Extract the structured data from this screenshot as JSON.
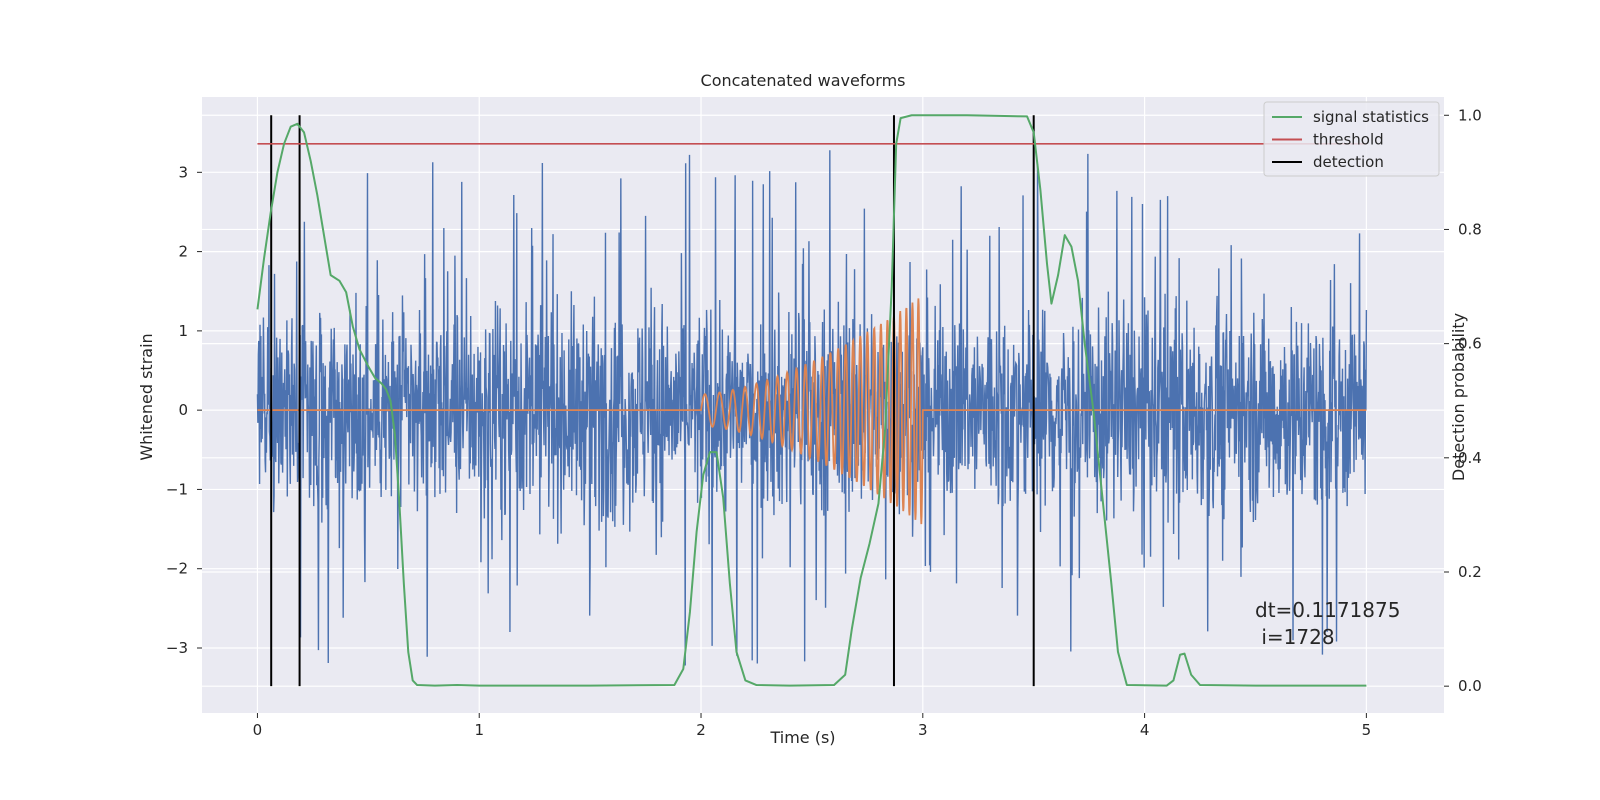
{
  "chart_data": {
    "type": "line",
    "title": "Concatenated waveforms",
    "xlabel": "Time (s)",
    "ylabel_left": "Whitened strain",
    "ylabel_right": "Detection probability",
    "xlim": [
      -0.25,
      5.35
    ],
    "ylim_left": [
      -3.82,
      3.95
    ],
    "ylim_right": [
      -0.047,
      1.032
    ],
    "x_ticks": [
      0,
      1,
      2,
      3,
      4,
      5
    ],
    "y_ticks_left": [
      -3,
      -2,
      -1,
      0,
      1,
      2,
      3
    ],
    "y_ticks_right": [
      0.0,
      0.2,
      0.4,
      0.6,
      0.8,
      1.0
    ],
    "y_tick_labels_right": [
      "0.0",
      "0.2",
      "0.4",
      "0.6",
      "0.8",
      "1.0"
    ],
    "y_tick_labels_left": [
      "−3",
      "−2",
      "−1",
      "0",
      "1",
      "2",
      "3"
    ],
    "grid": true,
    "legend_position": "top-right",
    "colors": {
      "background": "#eaeaf2",
      "strain": "#4c72b0",
      "template": "#dd8452",
      "signal_statistics": "#55a868",
      "threshold": "#c44e52",
      "detection": "#000000"
    },
    "series": [
      {
        "name": "signal statistics",
        "axis": "right",
        "points": [
          [
            0.0,
            0.66
          ],
          [
            0.03,
            0.75
          ],
          [
            0.06,
            0.83
          ],
          [
            0.09,
            0.9
          ],
          [
            0.12,
            0.95
          ],
          [
            0.15,
            0.98
          ],
          [
            0.18,
            0.985
          ],
          [
            0.21,
            0.97
          ],
          [
            0.24,
            0.92
          ],
          [
            0.27,
            0.86
          ],
          [
            0.3,
            0.79
          ],
          [
            0.33,
            0.72
          ],
          [
            0.37,
            0.71
          ],
          [
            0.4,
            0.69
          ],
          [
            0.43,
            0.63
          ],
          [
            0.46,
            0.59
          ],
          [
            0.5,
            0.56
          ],
          [
            0.53,
            0.54
          ],
          [
            0.56,
            0.53
          ],
          [
            0.58,
            0.52
          ],
          [
            0.6,
            0.5
          ],
          [
            0.62,
            0.44
          ],
          [
            0.64,
            0.32
          ],
          [
            0.66,
            0.18
          ],
          [
            0.68,
            0.06
          ],
          [
            0.7,
            0.01
          ],
          [
            0.72,
            0.002
          ],
          [
            0.8,
            0.001
          ],
          [
            0.9,
            0.002
          ],
          [
            1.0,
            0.001
          ],
          [
            1.5,
            0.001
          ],
          [
            1.88,
            0.002
          ],
          [
            1.92,
            0.03
          ],
          [
            1.95,
            0.13
          ],
          [
            1.98,
            0.27
          ],
          [
            2.01,
            0.37
          ],
          [
            2.04,
            0.41
          ],
          [
            2.07,
            0.41
          ],
          [
            2.1,
            0.33
          ],
          [
            2.13,
            0.18
          ],
          [
            2.16,
            0.06
          ],
          [
            2.2,
            0.01
          ],
          [
            2.25,
            0.002
          ],
          [
            2.4,
            0.001
          ],
          [
            2.6,
            0.002
          ],
          [
            2.65,
            0.02
          ],
          [
            2.68,
            0.1
          ],
          [
            2.72,
            0.19
          ],
          [
            2.76,
            0.25
          ],
          [
            2.8,
            0.32
          ],
          [
            2.83,
            0.45
          ],
          [
            2.86,
            0.7
          ],
          [
            2.88,
            0.95
          ],
          [
            2.9,
            0.995
          ],
          [
            2.95,
            1.0
          ],
          [
            3.2,
            1.0
          ],
          [
            3.47,
            0.998
          ],
          [
            3.5,
            0.97
          ],
          [
            3.53,
            0.87
          ],
          [
            3.56,
            0.74
          ],
          [
            3.58,
            0.67
          ],
          [
            3.61,
            0.72
          ],
          [
            3.64,
            0.79
          ],
          [
            3.67,
            0.77
          ],
          [
            3.7,
            0.71
          ],
          [
            3.73,
            0.6
          ],
          [
            3.77,
            0.48
          ],
          [
            3.81,
            0.33
          ],
          [
            3.85,
            0.18
          ],
          [
            3.88,
            0.06
          ],
          [
            3.92,
            0.002
          ],
          [
            4.1,
            0.001
          ],
          [
            4.13,
            0.01
          ],
          [
            4.16,
            0.055
          ],
          [
            4.18,
            0.057
          ],
          [
            4.21,
            0.02
          ],
          [
            4.25,
            0.002
          ],
          [
            4.5,
            0.001
          ],
          [
            5.0,
            0.001
          ]
        ]
      },
      {
        "name": "threshold",
        "axis": "right",
        "points": [
          [
            0.0,
            0.95
          ],
          [
            5.0,
            0.95
          ]
        ]
      },
      {
        "name": "detection",
        "axis": "right",
        "x": [
          0.062,
          0.19,
          2.87,
          3.5
        ],
        "range": [
          0.0,
          1.0
        ]
      },
      {
        "axis": "left",
        "kind": "whitened_strain_noise",
        "x_range": [
          0.0,
          5.0
        ],
        "typical_amplitude": 0.9,
        "max": 3.4,
        "min": -3.5
      },
      {
        "axis": "left",
        "kind": "template_chirp",
        "x_range": [
          0.0,
          5.0
        ],
        "chirp_interval": [
          2.0,
          3.0
        ],
        "amplitude_start": 0.2,
        "amplitude_end": 1.45
      }
    ],
    "annotations": [
      "dt=0.1171875",
      " i=1728"
    ]
  }
}
